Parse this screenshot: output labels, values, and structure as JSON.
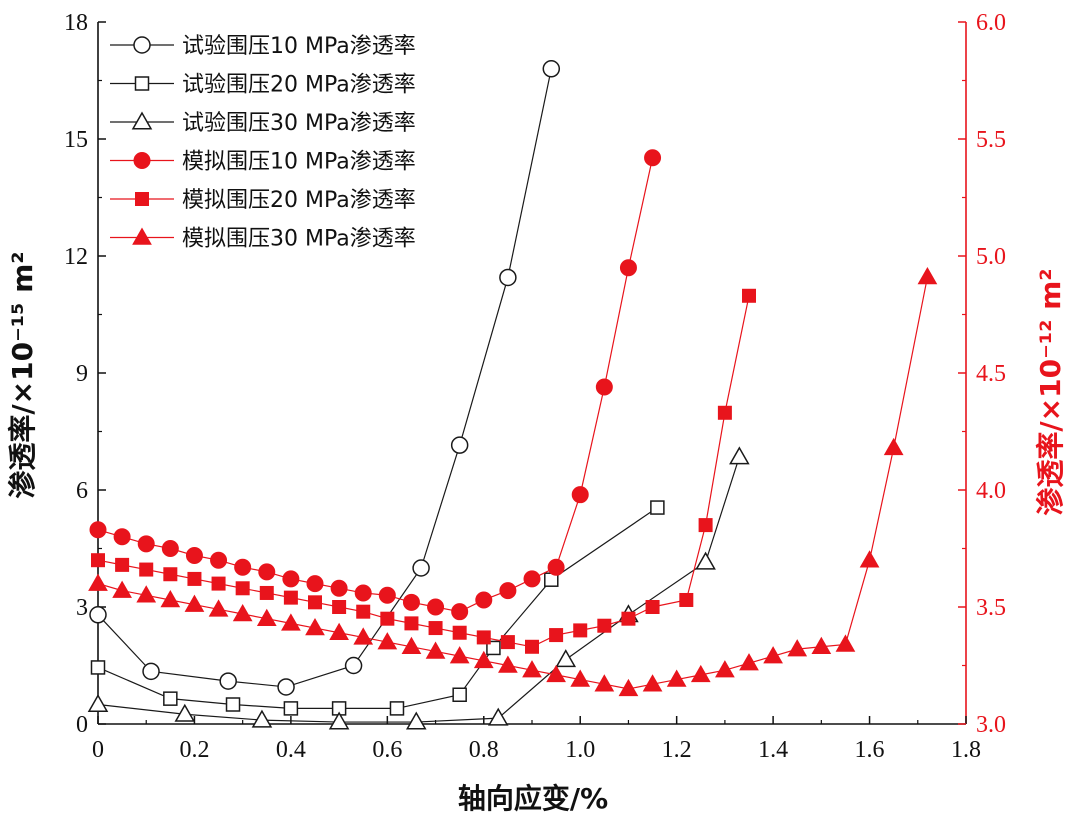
{
  "chart_data": {
    "type": "line",
    "title": "",
    "xlabel": "轴向应变/%",
    "ylabel_left": "渗透率/×10⁻¹⁵ m²",
    "ylabel_right": "渗透率/×10⁻¹² m²",
    "xlim": [
      0,
      1.8
    ],
    "ylim_left": [
      0,
      18
    ],
    "ylim_right": [
      3.0,
      6.0
    ],
    "x_ticks": [
      "0",
      "0.2",
      "0.4",
      "0.6",
      "0.8",
      "1.0",
      "1.2",
      "1.4",
      "1.6",
      "1.8"
    ],
    "y_left_ticks": [
      "0",
      "3",
      "6",
      "9",
      "12",
      "15",
      "18"
    ],
    "y_right_ticks": [
      "3.0",
      "3.5",
      "4.0",
      "4.5",
      "5.0",
      "5.5",
      "6.0"
    ],
    "grid": false,
    "legend_position": "top-left",
    "colors": {
      "experimental": "#1a1a1a",
      "simulated": "#e8141c"
    },
    "series": [
      {
        "name": "试验围压10 MPa渗透率",
        "axis": "left",
        "marker": "circle-open",
        "x": [
          0.0,
          0.11,
          0.27,
          0.39,
          0.53,
          0.67,
          0.75,
          0.85,
          0.94
        ],
        "y": [
          2.8,
          1.35,
          1.1,
          0.95,
          1.5,
          4.0,
          7.15,
          11.45,
          16.8
        ]
      },
      {
        "name": "试验围压20 MPa渗透率",
        "axis": "left",
        "marker": "square-open",
        "x": [
          0.0,
          0.15,
          0.28,
          0.4,
          0.5,
          0.62,
          0.75,
          0.82,
          0.94,
          1.16
        ],
        "y": [
          1.45,
          0.65,
          0.5,
          0.4,
          0.4,
          0.4,
          0.75,
          1.95,
          3.7,
          5.55
        ]
      },
      {
        "name": "试验围压30 MPa渗透率",
        "axis": "left",
        "marker": "triangle-open",
        "x": [
          0.0,
          0.18,
          0.34,
          0.5,
          0.66,
          0.83,
          0.97,
          1.1,
          1.26,
          1.33
        ],
        "y": [
          0.5,
          0.25,
          0.1,
          0.05,
          0.05,
          0.15,
          1.65,
          2.8,
          4.15,
          6.85
        ]
      },
      {
        "name": "模拟围压10 MPa渗透率",
        "axis": "right",
        "marker": "circle-filled",
        "x": [
          0.0,
          0.05,
          0.1,
          0.15,
          0.2,
          0.25,
          0.3,
          0.35,
          0.4,
          0.45,
          0.5,
          0.55,
          0.6,
          0.65,
          0.7,
          0.75,
          0.8,
          0.85,
          0.9,
          0.95,
          1.0,
          1.05,
          1.1,
          1.15
        ],
        "y": [
          3.83,
          3.8,
          3.77,
          3.75,
          3.72,
          3.7,
          3.67,
          3.65,
          3.62,
          3.6,
          3.58,
          3.56,
          3.55,
          3.52,
          3.5,
          3.48,
          3.53,
          3.57,
          3.62,
          3.67,
          3.98,
          4.44,
          4.95,
          5.42
        ]
      },
      {
        "name": "模拟围压20 MPa渗透率",
        "axis": "right",
        "marker": "square-filled",
        "x": [
          0.0,
          0.05,
          0.1,
          0.15,
          0.2,
          0.25,
          0.3,
          0.35,
          0.4,
          0.45,
          0.5,
          0.55,
          0.6,
          0.65,
          0.7,
          0.75,
          0.8,
          0.85,
          0.9,
          0.95,
          1.0,
          1.05,
          1.1,
          1.15,
          1.22,
          1.26,
          1.3,
          1.35
        ],
        "y": [
          3.7,
          3.68,
          3.66,
          3.64,
          3.62,
          3.6,
          3.58,
          3.56,
          3.54,
          3.52,
          3.5,
          3.48,
          3.45,
          3.43,
          3.41,
          3.39,
          3.37,
          3.35,
          3.33,
          3.38,
          3.4,
          3.42,
          3.45,
          3.5,
          3.53,
          3.85,
          4.33,
          4.83
        ]
      },
      {
        "name": "模拟围压30 MPa渗透率",
        "axis": "right",
        "marker": "triangle-filled",
        "x": [
          0.0,
          0.05,
          0.1,
          0.15,
          0.2,
          0.25,
          0.3,
          0.35,
          0.4,
          0.45,
          0.5,
          0.55,
          0.6,
          0.65,
          0.7,
          0.75,
          0.8,
          0.85,
          0.9,
          0.95,
          1.0,
          1.05,
          1.1,
          1.15,
          1.2,
          1.25,
          1.3,
          1.35,
          1.4,
          1.45,
          1.5,
          1.55,
          1.6,
          1.65,
          1.72
        ],
        "y": [
          3.6,
          3.57,
          3.55,
          3.53,
          3.51,
          3.49,
          3.47,
          3.45,
          3.43,
          3.41,
          3.39,
          3.37,
          3.35,
          3.33,
          3.31,
          3.29,
          3.27,
          3.25,
          3.23,
          3.21,
          3.19,
          3.17,
          3.15,
          3.17,
          3.19,
          3.21,
          3.23,
          3.26,
          3.29,
          3.32,
          3.33,
          3.34,
          3.7,
          4.18,
          4.91
        ]
      }
    ]
  }
}
